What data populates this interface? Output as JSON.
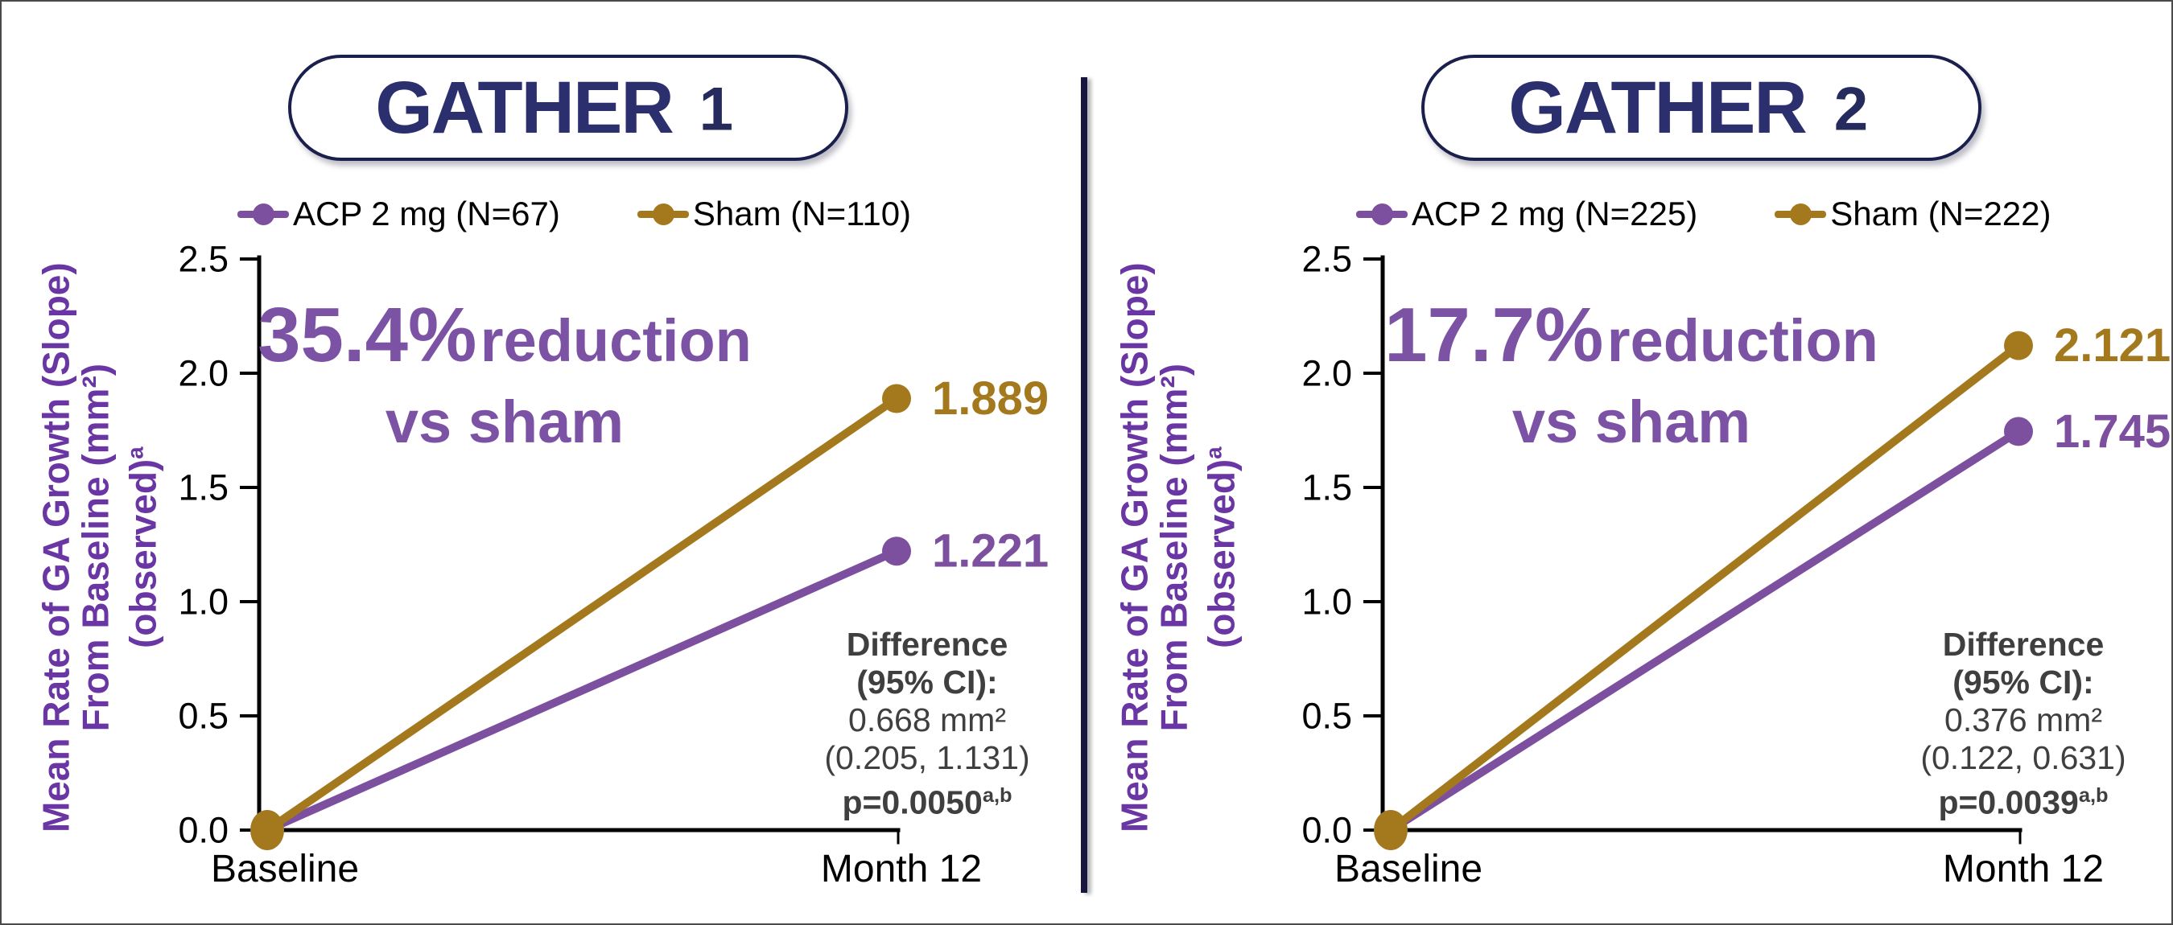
{
  "colors": {
    "acp_purple": "#7D4F9F",
    "sham_gold": "#A4791E",
    "reduction_purple": "#7C52A5",
    "ylabel_purple": "#6936A3",
    "difference_gray": "#3F3F3F",
    "axis_black": "#000000",
    "logo_navy": "#2B2F6E",
    "logo_red": "#E93A4F",
    "logo_purple": "#8A57A5",
    "pill_border_navy": "#1A1F4C",
    "divider_navy": "#16163E"
  },
  "chart_data": [
    {
      "type": "line",
      "trial_logo": {
        "text": "GATHER",
        "number": "1"
      },
      "x_categories": [
        "Baseline",
        "Month 12"
      ],
      "ylim": [
        0,
        2.5
      ],
      "yticks": [
        "0.0",
        "0.5",
        "1.0",
        "1.5",
        "2.0",
        "2.5"
      ],
      "ylabel_lines": [
        "Mean Rate of GA Growth (Slope)",
        "From Baseline (mm²)",
        "(observed)"
      ],
      "ylabel_sup": "a",
      "legend_position": "top",
      "grid": false,
      "series": [
        {
          "name": "ACP 2 mg (N=67)",
          "color": "#7D4F9F",
          "values": [
            0.0,
            1.221
          ],
          "end_label": "1.221"
        },
        {
          "name": "Sham (N=110)",
          "color": "#A4791E",
          "values": [
            0.0,
            1.889
          ],
          "end_label": "1.889"
        }
      ],
      "reduction": {
        "percent": "35.4%",
        "text": "reduction",
        "line2": "vs sham"
      },
      "difference": {
        "line1": "Difference",
        "line2": "(95% CI):",
        "line3": "0.668 mm²",
        "line4": "(0.205, 1.131)",
        "p_value": "p=0.0050",
        "p_sup": "a,b"
      }
    },
    {
      "type": "line",
      "trial_logo": {
        "text": "GATHER",
        "number": "2"
      },
      "x_categories": [
        "Baseline",
        "Month 12"
      ],
      "ylim": [
        0,
        2.5
      ],
      "yticks": [
        "0.0",
        "0.5",
        "1.0",
        "1.5",
        "2.0",
        "2.5"
      ],
      "ylabel_lines": [
        "Mean Rate of GA Growth (Slope)",
        "From Baseline (mm²)",
        "(observed)"
      ],
      "ylabel_sup": "a",
      "legend_position": "top",
      "grid": false,
      "series": [
        {
          "name": "ACP 2 mg (N=225)",
          "color": "#7D4F9F",
          "values": [
            0.0,
            1.745
          ],
          "end_label": "1.745"
        },
        {
          "name": "Sham (N=222)",
          "color": "#A4791E",
          "values": [
            0.0,
            2.121
          ],
          "end_label": "2.121"
        }
      ],
      "reduction": {
        "percent": "17.7%",
        "text": "reduction",
        "line2": "vs sham"
      },
      "difference": {
        "line1": "Difference",
        "line2": "(95% CI):",
        "line3": "0.376 mm²",
        "line4": "(0.122, 0.631)",
        "p_value": "p=0.0039",
        "p_sup": "a,b"
      }
    }
  ]
}
